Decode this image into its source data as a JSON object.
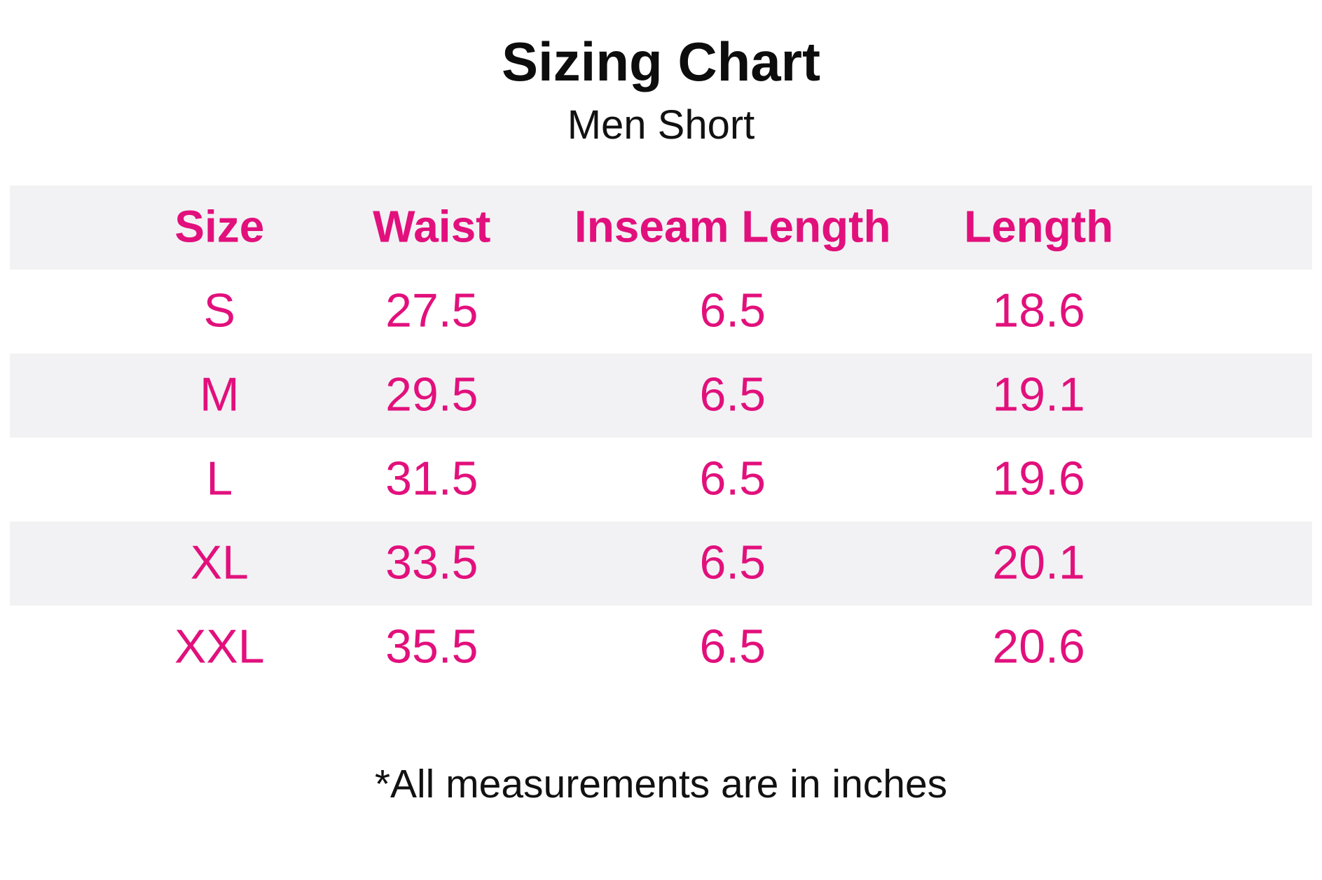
{
  "page": {
    "title": "Sizing Chart",
    "subtitle": "Men Short",
    "footnote": "*All measurements are in inches"
  },
  "colors": {
    "accent_pink": "#e2107c",
    "stripe_gray": "#f2f2f4",
    "text_black": "#111111"
  },
  "chart_data": {
    "type": "table",
    "title": "Sizing Chart",
    "subtitle": "Men Short",
    "columns": [
      "Size",
      "Waist",
      "Inseam Length",
      "Length"
    ],
    "rows": [
      {
        "size": "S",
        "waist": 27.5,
        "inseam_length": 6.5,
        "length": 18.6
      },
      {
        "size": "M",
        "waist": 29.5,
        "inseam_length": 6.5,
        "length": 19.1
      },
      {
        "size": "L",
        "waist": 31.5,
        "inseam_length": 6.5,
        "length": 19.6
      },
      {
        "size": "XL",
        "waist": 33.5,
        "inseam_length": 6.5,
        "length": 20.1
      },
      {
        "size": "XXL",
        "waist": 35.5,
        "inseam_length": 6.5,
        "length": 20.6
      }
    ],
    "units": "inches",
    "footnote": "*All measurements are in inches",
    "layout": {
      "striped_rows": true,
      "header_striped": true,
      "stripe_color": "#f2f2f4",
      "value_text_color": "#e2107c",
      "column_alignment": "center"
    }
  }
}
